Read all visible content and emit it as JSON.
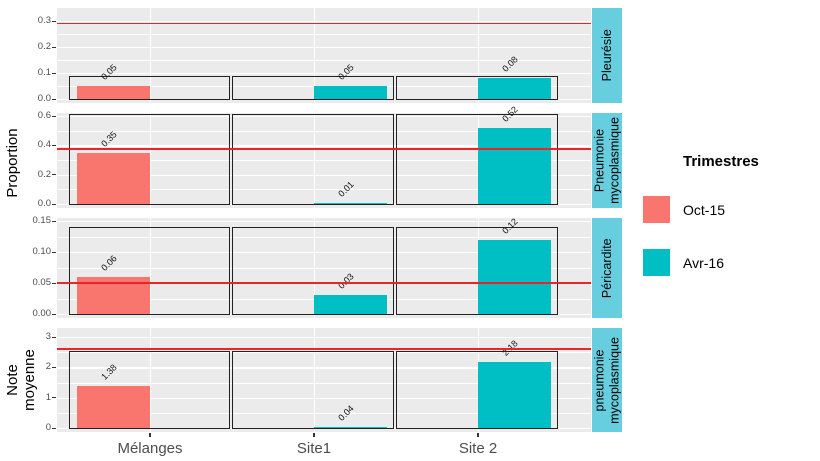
{
  "chart_data": {
    "type": "bar",
    "title": "",
    "facet_layout": "rows",
    "categories": [
      "Mélanges",
      "Site1",
      "Site 2"
    ],
    "y_titles": {
      "proportion": "Proportion",
      "note": "Note moyenne",
      "note_lines": [
        "Note",
        "moyenne"
      ]
    },
    "legend": {
      "title": "Trimestres",
      "position": "right",
      "entries": [
        {
          "label": "Oct-15",
          "color": "#F8766D"
        },
        {
          "label": "Avr-16",
          "color": "#00BFC4"
        }
      ]
    },
    "colors": {
      "oct15": "#F8766D",
      "avr16": "#00BFC4",
      "strip_bg": "#66CEDF",
      "panel_bg": "#EBEBEB",
      "grid": "#FFFFFF",
      "ref_line": "#EC2427",
      "box_border": "#222222",
      "axis_text": "#4D4D4D"
    },
    "panels": [
      {
        "strip": "Pleurésie",
        "strip_lines": [
          "Pleurésie"
        ],
        "y_title": "Proportion",
        "tick_labels": [
          "0.0",
          "0.1",
          "0.2",
          "0.3"
        ],
        "tick_values": [
          0,
          0.1,
          0.2,
          0.3
        ],
        "ylim": [
          0,
          0.35
        ],
        "ref_line": 0.29,
        "box_top": 0.09,
        "bars": [
          {
            "category": "Mélanges",
            "series": "Oct-15",
            "value": 0.05,
            "label": "0.05"
          },
          {
            "category": "Site1",
            "series": "Avr-16",
            "value": 0.05,
            "label": "0.05"
          },
          {
            "category": "Site 2",
            "series": "Avr-16",
            "value": 0.08,
            "label": "0.08"
          }
        ]
      },
      {
        "strip": "Pneumonie mycoplasmique",
        "strip_lines": [
          "Pneumonie",
          "mycoplasmique"
        ],
        "y_title": "Proportion",
        "tick_labels": [
          "0.0",
          "0.2",
          "0.4",
          "0.6"
        ],
        "tick_values": [
          0,
          0.2,
          0.4,
          0.6
        ],
        "ylim": [
          0,
          0.65
        ],
        "ref_line": 0.375,
        "box_top": 0.615,
        "bars": [
          {
            "category": "Mélanges",
            "series": "Oct-15",
            "value": 0.35,
            "label": "0.35"
          },
          {
            "category": "Site1",
            "series": "Avr-16",
            "value": 0.01,
            "label": "0.01"
          },
          {
            "category": "Site 2",
            "series": "Avr-16",
            "value": 0.52,
            "label": "0.52"
          }
        ]
      },
      {
        "strip": "Péricardite",
        "strip_lines": [
          "Péricardite"
        ],
        "y_title": "Proportion",
        "tick_labels": [
          "0.00",
          "0.05",
          "0.10",
          "0.15"
        ],
        "tick_values": [
          0,
          0.05,
          0.1,
          0.15
        ],
        "ylim": [
          0,
          0.155
        ],
        "ref_line": 0.05,
        "box_top": 0.14,
        "bars": [
          {
            "category": "Mélanges",
            "series": "Oct-15",
            "value": 0.06,
            "label": "0.06"
          },
          {
            "category": "Site1",
            "series": "Avr-16",
            "value": 0.03,
            "label": "0.03"
          },
          {
            "category": "Site 2",
            "series": "Avr-16",
            "value": 0.12,
            "label": "0.12"
          }
        ]
      },
      {
        "strip": "pneumonie mycoplasmique",
        "strip_lines": [
          "pneumonie",
          "mycoplasmique"
        ],
        "y_title": "Note moyenne",
        "tick_labels": [
          "0",
          "1",
          "2",
          "3"
        ],
        "tick_values": [
          0,
          1,
          2,
          3
        ],
        "ylim": [
          0,
          3.3
        ],
        "ref_line": 2.6,
        "box_top": 2.54,
        "bars": [
          {
            "category": "Mélanges",
            "series": "Oct-15",
            "value": 1.38,
            "label": "1.38"
          },
          {
            "category": "Site1",
            "series": "Avr-16",
            "value": 0.04,
            "label": "0.04"
          },
          {
            "category": "Site 2",
            "series": "Avr-16",
            "value": 2.18,
            "label": "2.18"
          }
        ]
      }
    ]
  }
}
